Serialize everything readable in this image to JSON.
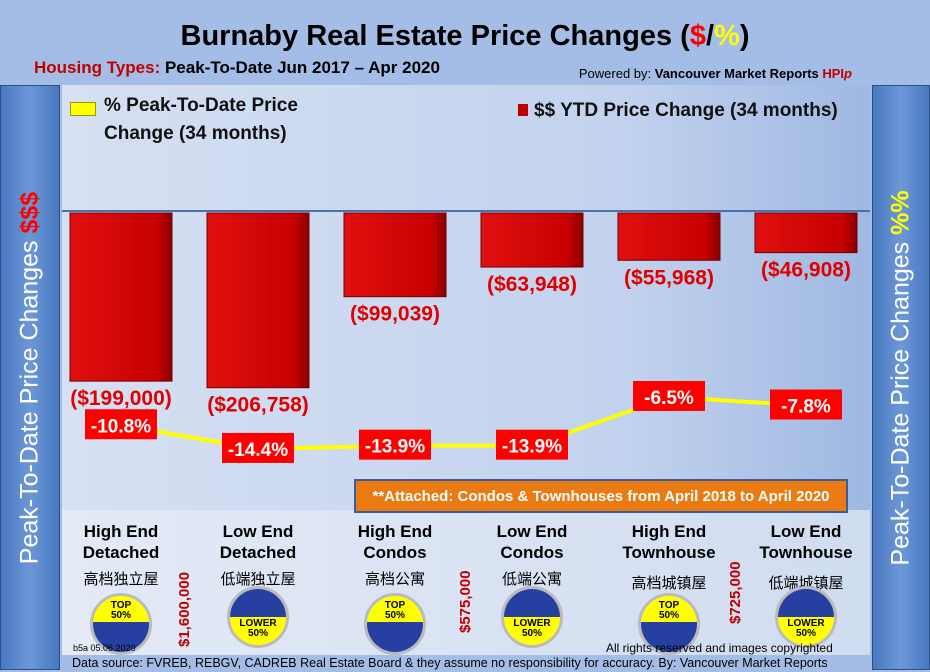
{
  "header": {
    "title_main": "Burnaby Real Estate Price Changes (",
    "title_dollar": "$",
    "title_slash": "/",
    "title_pct": "%",
    "title_close": ")",
    "subtitle_label": "Housing Types:",
    "subtitle_value": " Peak-To-Date Jun 2017 – Apr 2020",
    "powered_label": "Powered by: ",
    "powered_brand": "Vancouver Market Reports ",
    "powered_hpi": "HPI",
    "powered_p": "p"
  },
  "side_left": {
    "text": "Peak-To-Date Price Changes ",
    "accent": "$$$"
  },
  "side_right": {
    "text": "Peak-To-Date  Price  Changes ",
    "accent": "%%"
  },
  "note": "**Attached: Condos & Townhouses from April 2018 to April 2020",
  "categories_detail": [
    {
      "en1": "High End",
      "en2": "Detached",
      "cn": "高档独立屋",
      "badge": "TOP",
      "badge_pct": "50%"
    },
    {
      "en1": "Low End",
      "en2": "Detached",
      "cn": "低端独立屋",
      "badge": "LOWER",
      "badge_pct": "50%"
    },
    {
      "en1": "High End",
      "en2": "Condos",
      "cn": "高档公寓",
      "badge": "TOP",
      "badge_pct": "50%"
    },
    {
      "en1": "Low End",
      "en2": "Condos",
      "cn": "低端公寓",
      "badge": "LOWER",
      "badge_pct": "50%"
    },
    {
      "en1": "High End",
      "en2": "Townhouse",
      "cn": "高档城镇屋",
      "badge": "TOP",
      "badge_pct": "50%"
    },
    {
      "en1": "Low End",
      "en2": "Townhouse",
      "cn": "低端城镇屋",
      "badge": "LOWER",
      "badge_pct": "50%"
    }
  ],
  "thresholds": [
    "$1,600,000",
    "$575,000",
    "$725,000"
  ],
  "footer": {
    "version": "b5a 05.06.2020",
    "rights": "All rights reserved and  images copyrighted",
    "source": "Data source: FVREB, REBGV, CADREB Real Estate Board & they assume no responsibility for accuracy. By: Vancouver Market Reports"
  },
  "colors": {
    "bar": "#cc0000",
    "line": "#ffff00",
    "label_bg": "#ff0000",
    "accent_dollar": "#ff0000",
    "accent_pct": "#ffff00"
  },
  "chart_data": {
    "type": "bar+line",
    "categories": [
      "High End Detached",
      "Low End Detached",
      "High End Condos",
      "Low End Condos",
      "High End Townhouse",
      "Low End Townhouse"
    ],
    "series": [
      {
        "name": "$$ YTD Price Change (34 months)",
        "type": "bar",
        "values": [
          -199000,
          -206758,
          -99039,
          -63948,
          -55968,
          -46908
        ],
        "labels": [
          "($199,000)",
          "($206,758)",
          "($99,039)",
          "($63,948)",
          "($55,968)",
          "($46,908)"
        ]
      },
      {
        "name": "% Peak-To-Date Price Change (34 months)",
        "type": "line",
        "values": [
          -10.8,
          -14.4,
          -13.9,
          -13.9,
          -6.5,
          -7.8
        ],
        "labels": [
          "-10.8%",
          "-14.4%",
          "-13.9%",
          "-13.9%",
          "-6.5%",
          "-7.8%"
        ]
      }
    ],
    "legend_placement": "top"
  }
}
